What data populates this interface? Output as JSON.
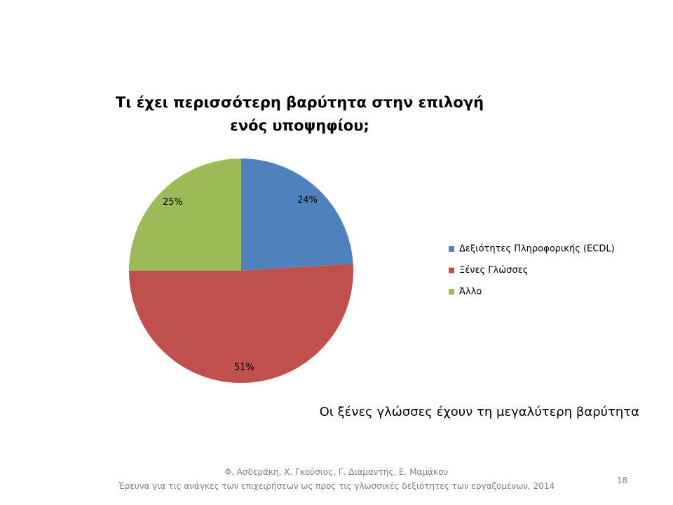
{
  "chart_data": {
    "type": "pie",
    "title": "Τι έχει περισσότερη βαρύτητα στην επιλογή ενός υποψηφίου;",
    "categories": [
      "Δεξιότητες Πληροφορικής (ECDL)",
      "Ξένες Γλώσσες",
      "Άλλο"
    ],
    "values": [
      24,
      51,
      25
    ],
    "value_labels": [
      "24%",
      "51%",
      "25%"
    ],
    "colors": [
      "#4f81bd",
      "#c0504d",
      "#9bbb59"
    ],
    "legend": "right"
  },
  "slide": {
    "caption": "Οι ξένες γλώσσες έχουν τη μεγαλύτερη βαρύτητα",
    "footer": [
      "Φ. Ασδεράκη, Χ. Γκούσιος, Γ. Διαμαντής, Ε. Μαμάκου",
      "Έρευνα για τις ανάγκες των επιχειρήσεων ως προς τις γλωσσικές δεξιότητες των εργαζομένων, 2014"
    ],
    "page_number": 18
  }
}
